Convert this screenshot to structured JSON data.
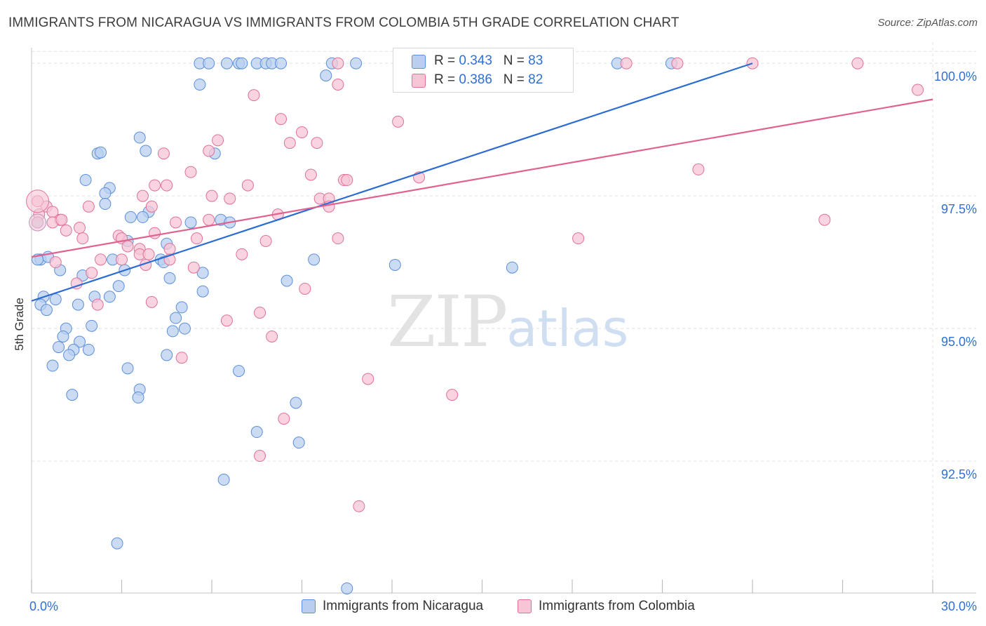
{
  "title": "IMMIGRANTS FROM NICARAGUA VS IMMIGRANTS FROM COLOMBIA 5TH GRADE CORRELATION CHART",
  "source": "Source: ZipAtlas.com",
  "watermark": {
    "zip": "ZIP",
    "atlas": "atlas"
  },
  "legend": {
    "rows": [
      {
        "r_label": "R = ",
        "r_value": "0.343",
        "n_label": "N = ",
        "n_value": "83"
      },
      {
        "r_label": "R = ",
        "r_value": "0.386",
        "n_label": "N = ",
        "n_value": "82"
      }
    ]
  },
  "chart_data": {
    "type": "scatter",
    "xlabel": "",
    "ylabel": "5th Grade",
    "xlim": [
      0,
      30
    ],
    "ylim": [
      90.08,
      100.4
    ],
    "x_tick_labels": [
      "0.0%",
      "30.0%"
    ],
    "y_ticks": [
      92.5,
      95.0,
      97.5,
      100.0
    ],
    "y_tick_labels": [
      "92.5%",
      "95.0%",
      "97.5%",
      "100.0%"
    ],
    "grid": true,
    "legend_position": "top-center",
    "series": [
      {
        "name": "Immigrants from Nicaragua",
        "color": "#5b8fd9",
        "fill": "#b9cff0",
        "trend": [
          [
            0.0,
            95.52
          ],
          [
            24.0,
            100.0
          ]
        ],
        "points": [
          [
            5.6,
            100
          ],
          [
            5.9,
            100
          ],
          [
            6.5,
            100
          ],
          [
            6.9,
            100
          ],
          [
            7.0,
            100
          ],
          [
            7.5,
            100
          ],
          [
            7.8,
            100
          ],
          [
            8.0,
            100
          ],
          [
            8.3,
            100
          ],
          [
            10.0,
            100
          ],
          [
            10.8,
            100
          ],
          [
            19.5,
            100
          ],
          [
            21.3,
            100
          ],
          [
            9.8,
            99.77
          ],
          [
            5.6,
            99.6
          ],
          [
            3.6,
            98.6
          ],
          [
            3.8,
            98.35
          ],
          [
            2.2,
            98.3
          ],
          [
            2.3,
            98.32
          ],
          [
            6.1,
            98.3
          ],
          [
            1.8,
            97.8
          ],
          [
            2.6,
            97.65
          ],
          [
            2.45,
            97.55
          ],
          [
            2.45,
            97.35
          ],
          [
            3.9,
            97.2
          ],
          [
            3.3,
            97.1
          ],
          [
            3.7,
            97.1
          ],
          [
            5.3,
            97.0
          ],
          [
            6.3,
            97.05
          ],
          [
            6.6,
            97.0
          ],
          [
            0.2,
            97.0
          ],
          [
            3.2,
            96.65
          ],
          [
            4.5,
            96.6
          ],
          [
            0.3,
            96.3
          ],
          [
            0.55,
            96.35
          ],
          [
            0.2,
            96.3
          ],
          [
            2.7,
            96.3
          ],
          [
            4.3,
            96.3
          ],
          [
            4.4,
            96.25
          ],
          [
            9.4,
            96.3
          ],
          [
            12.1,
            96.2
          ],
          [
            16.0,
            96.15
          ],
          [
            3.1,
            96.1
          ],
          [
            5.7,
            96.05
          ],
          [
            0.95,
            96.1
          ],
          [
            1.7,
            96.0
          ],
          [
            4.6,
            95.95
          ],
          [
            8.5,
            95.9
          ],
          [
            2.9,
            95.8
          ],
          [
            2.1,
            95.6
          ],
          [
            2.6,
            95.6
          ],
          [
            5.7,
            95.7
          ],
          [
            0.4,
            95.6
          ],
          [
            0.8,
            95.55
          ],
          [
            1.55,
            95.45
          ],
          [
            0.3,
            95.45
          ],
          [
            0.5,
            95.35
          ],
          [
            5.0,
            95.4
          ],
          [
            4.8,
            95.2
          ],
          [
            2.0,
            95.05
          ],
          [
            5.1,
            95.0
          ],
          [
            1.15,
            95.0
          ],
          [
            4.7,
            94.95
          ],
          [
            1.05,
            94.85
          ],
          [
            1.6,
            94.75
          ],
          [
            1.4,
            94.6
          ],
          [
            0.9,
            94.65
          ],
          [
            1.9,
            94.6
          ],
          [
            1.25,
            94.5
          ],
          [
            4.5,
            94.5
          ],
          [
            0.7,
            94.3
          ],
          [
            3.2,
            94.25
          ],
          [
            6.9,
            94.2
          ],
          [
            3.6,
            93.85
          ],
          [
            1.35,
            93.75
          ],
          [
            3.55,
            93.7
          ],
          [
            8.8,
            93.6
          ],
          [
            7.5,
            93.05
          ],
          [
            8.9,
            92.85
          ],
          [
            6.4,
            92.15
          ],
          [
            2.85,
            90.95
          ],
          [
            10.5,
            90.1
          ],
          [
            13.3,
            99.6
          ]
        ]
      },
      {
        "name": "Immigrants from Colombia",
        "color": "#e07099",
        "fill": "#f7c5d6",
        "trend": [
          [
            0.0,
            96.35
          ],
          [
            30.0,
            99.32
          ]
        ],
        "points": [
          [
            10.2,
            100
          ],
          [
            14.3,
            100
          ],
          [
            19.8,
            100
          ],
          [
            21.5,
            100
          ],
          [
            24.0,
            100
          ],
          [
            27.5,
            100
          ],
          [
            29.5,
            99.5
          ],
          [
            10.2,
            99.6
          ],
          [
            7.4,
            99.4
          ],
          [
            8.3,
            98.95
          ],
          [
            12.2,
            98.9
          ],
          [
            9.0,
            98.7
          ],
          [
            6.2,
            98.55
          ],
          [
            8.6,
            98.5
          ],
          [
            9.5,
            98.5
          ],
          [
            5.9,
            98.35
          ],
          [
            4.4,
            98.3
          ],
          [
            22.2,
            98.0
          ],
          [
            5.3,
            97.95
          ],
          [
            9.3,
            97.9
          ],
          [
            10.4,
            97.8
          ],
          [
            12.9,
            97.85
          ],
          [
            10.5,
            97.8
          ],
          [
            4.1,
            97.7
          ],
          [
            4.5,
            97.7
          ],
          [
            7.2,
            97.7
          ],
          [
            3.7,
            97.5
          ],
          [
            6.0,
            97.5
          ],
          [
            6.6,
            97.45
          ],
          [
            9.6,
            97.45
          ],
          [
            9.9,
            97.45
          ],
          [
            1.9,
            97.3
          ],
          [
            9.9,
            97.3
          ],
          [
            0.5,
            97.3
          ],
          [
            0.7,
            97.2
          ],
          [
            8.2,
            97.15
          ],
          [
            4.0,
            97.3
          ],
          [
            0.25,
            97.15
          ],
          [
            0.95,
            97.05
          ],
          [
            0.7,
            97.0
          ],
          [
            1.0,
            97.05
          ],
          [
            5.9,
            97.05
          ],
          [
            4.8,
            97.0
          ],
          [
            26.4,
            97.05
          ],
          [
            1.15,
            96.85
          ],
          [
            1.6,
            96.9
          ],
          [
            2.9,
            96.75
          ],
          [
            3.0,
            96.7
          ],
          [
            4.1,
            96.8
          ],
          [
            1.7,
            96.7
          ],
          [
            5.5,
            96.7
          ],
          [
            7.8,
            96.65
          ],
          [
            10.2,
            96.7
          ],
          [
            18.2,
            96.7
          ],
          [
            3.6,
            96.5
          ],
          [
            4.6,
            96.5
          ],
          [
            3.2,
            96.55
          ],
          [
            3.6,
            96.4
          ],
          [
            3.9,
            96.4
          ],
          [
            7.0,
            96.4
          ],
          [
            3.0,
            96.3
          ],
          [
            2.3,
            96.3
          ],
          [
            4.6,
            96.3
          ],
          [
            0.8,
            96.25
          ],
          [
            3.8,
            96.2
          ],
          [
            5.4,
            96.15
          ],
          [
            2.0,
            96.05
          ],
          [
            1.5,
            95.85
          ],
          [
            9.1,
            95.75
          ],
          [
            4.0,
            95.5
          ],
          [
            2.2,
            95.45
          ],
          [
            7.6,
            95.3
          ],
          [
            6.5,
            95.15
          ],
          [
            8.0,
            94.85
          ],
          [
            5.0,
            94.45
          ],
          [
            11.2,
            94.05
          ],
          [
            14.0,
            93.75
          ],
          [
            8.4,
            93.3
          ],
          [
            7.6,
            92.6
          ],
          [
            10.9,
            91.65
          ],
          [
            0.2,
            97.4
          ],
          [
            0.2,
            97.0
          ]
        ]
      }
    ]
  }
}
